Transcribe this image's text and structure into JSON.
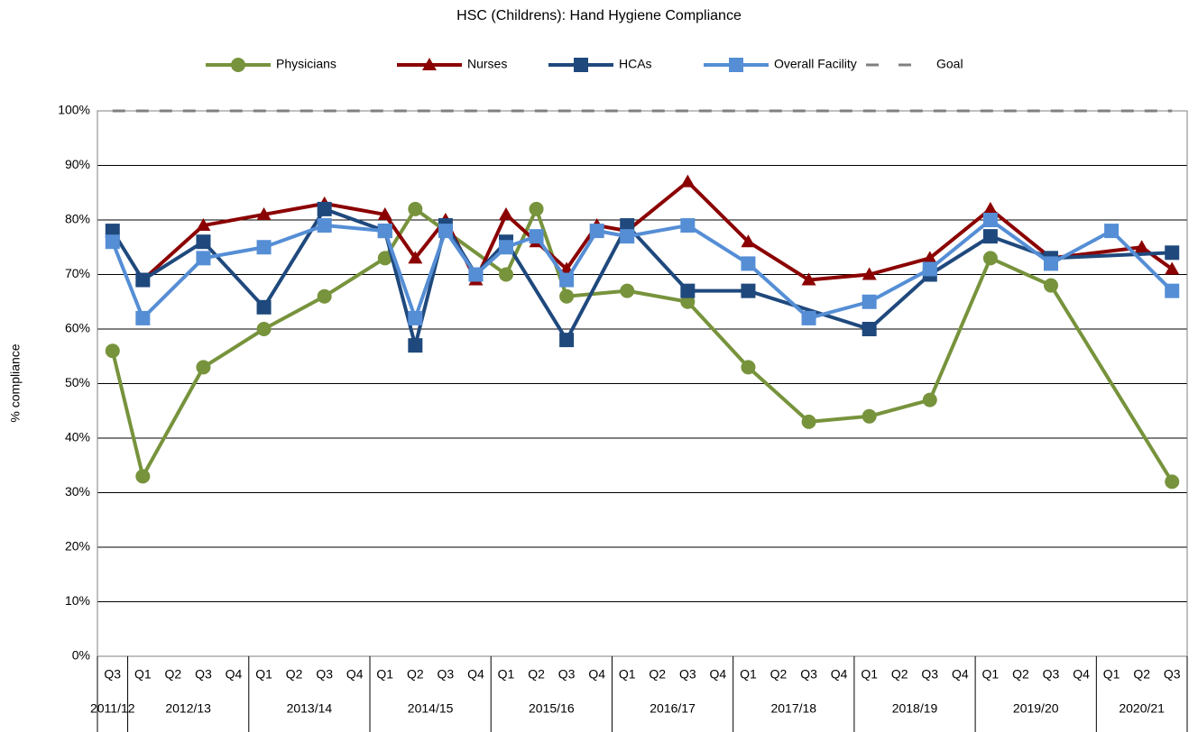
{
  "chart_data": {
    "type": "line",
    "title": "HSC (Childrens): Hand Hygiene Compliance",
    "y_label": "% compliance",
    "categories": [
      "Q3",
      "Q1",
      "Q2",
      "Q3",
      "Q4",
      "Q1",
      "Q2",
      "Q3",
      "Q4",
      "Q1",
      "Q2",
      "Q3",
      "Q4",
      "Q1",
      "Q2",
      "Q3",
      "Q4",
      "Q1",
      "Q2",
      "Q3",
      "Q4",
      "Q1",
      "Q2",
      "Q3",
      "Q4",
      "Q1",
      "Q2",
      "Q3",
      "Q4",
      "Q1",
      "Q2",
      "Q3",
      "Q4",
      "Q1",
      "Q2",
      "Q3"
    ],
    "category_groups": [
      {
        "label": "2011/12",
        "count": 1
      },
      {
        "label": "2012/13",
        "count": 4
      },
      {
        "label": "2013/14",
        "count": 4
      },
      {
        "label": "2014/15",
        "count": 4
      },
      {
        "label": "2015/16",
        "count": 4
      },
      {
        "label": "2016/17",
        "count": 4
      },
      {
        "label": "2017/18",
        "count": 4
      },
      {
        "label": "2018/19",
        "count": 4
      },
      {
        "label": "2019/20",
        "count": 4
      },
      {
        "label": "2020/21",
        "count": 3
      }
    ],
    "span_gaps": true,
    "series": [
      {
        "name": "Physicians",
        "color": "#77933c",
        "marker": "circle",
        "values": [
          56,
          33,
          null,
          53,
          null,
          60,
          null,
          66,
          null,
          73,
          82,
          78,
          null,
          70,
          82,
          66,
          null,
          67,
          null,
          65,
          null,
          53,
          null,
          43,
          null,
          44,
          null,
          47,
          null,
          73,
          null,
          68,
          null,
          null,
          null,
          32
        ]
      },
      {
        "name": "Nurses",
        "color": "#8b0000",
        "marker": "triangle",
        "values": [
          null,
          69,
          null,
          79,
          null,
          81,
          null,
          83,
          null,
          81,
          73,
          80,
          69,
          81,
          76,
          71,
          79,
          78,
          null,
          87,
          null,
          76,
          null,
          69,
          null,
          70,
          null,
          73,
          null,
          82,
          null,
          73,
          null,
          null,
          75,
          71
        ]
      },
      {
        "name": "HCAs",
        "color": "#1f497d",
        "marker": "square",
        "values": [
          78,
          69,
          null,
          76,
          null,
          64,
          null,
          82,
          null,
          78,
          57,
          79,
          70,
          76,
          null,
          58,
          null,
          79,
          null,
          67,
          null,
          67,
          null,
          null,
          null,
          60,
          null,
          70,
          null,
          77,
          null,
          73,
          null,
          null,
          null,
          74
        ]
      },
      {
        "name": "Overall Facility",
        "color": "#558ed5",
        "marker": "square",
        "values": [
          76,
          62,
          null,
          73,
          null,
          75,
          null,
          79,
          null,
          78,
          62,
          78,
          70,
          75,
          77,
          69,
          78,
          77,
          null,
          79,
          null,
          72,
          null,
          62,
          null,
          65,
          null,
          71,
          null,
          80,
          null,
          72,
          null,
          78,
          null,
          67
        ]
      },
      {
        "name": "Goal",
        "color": "#808080",
        "marker": "dash",
        "values": [
          100,
          100,
          100,
          100,
          100,
          100,
          100,
          100,
          100,
          100,
          100,
          100,
          100,
          100,
          100,
          100,
          100,
          100,
          100,
          100,
          100,
          100,
          100,
          100,
          100,
          100,
          100,
          100,
          100,
          100,
          100,
          100,
          100,
          100,
          100,
          100
        ]
      }
    ],
    "ylim": [
      0,
      100
    ],
    "yticks": [
      {
        "value": 0,
        "label": "0%"
      },
      {
        "value": 10,
        "label": "10%"
      },
      {
        "value": 20,
        "label": "20%"
      },
      {
        "value": 30,
        "label": "30%"
      },
      {
        "value": 40,
        "label": "40%"
      },
      {
        "value": 50,
        "label": "50%"
      },
      {
        "value": 60,
        "label": "60%"
      },
      {
        "value": 70,
        "label": "70%"
      },
      {
        "value": 80,
        "label": "80%"
      },
      {
        "value": 90,
        "label": "90%"
      },
      {
        "value": 100,
        "label": "100%"
      }
    ],
    "grid": true
  }
}
